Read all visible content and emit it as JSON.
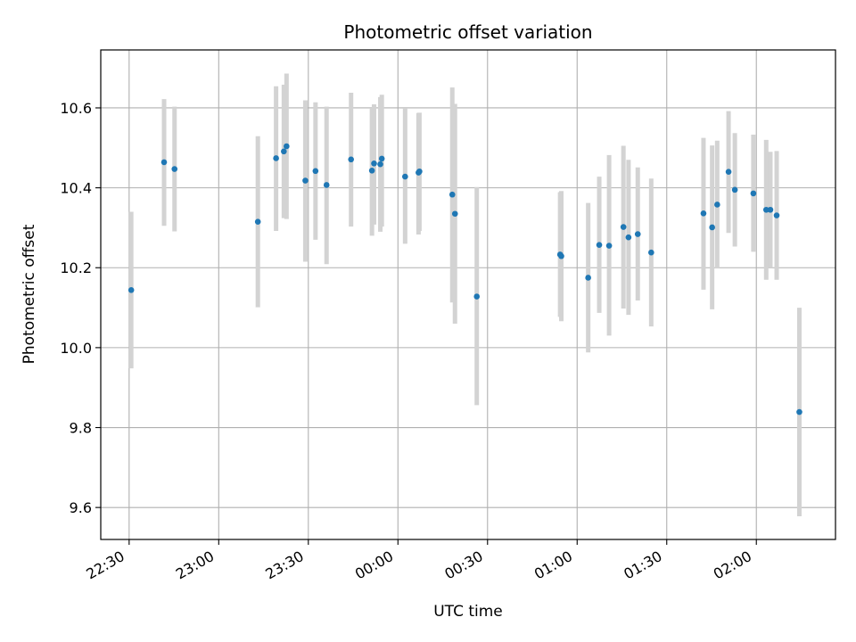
{
  "chart_data": {
    "type": "scatter",
    "title": "Photometric offset variation",
    "xlabel": "UTC time",
    "ylabel": "Photometric offset",
    "xlim": [
      "22:20:30",
      "02:26:30"
    ],
    "ylim": [
      9.52,
      10.745
    ],
    "x_is_time": true,
    "x_start_date_offset": 0,
    "xticks": [
      "22:30",
      "23:00",
      "23:30",
      "00:00",
      "00:30",
      "01:00",
      "01:30",
      "02:00"
    ],
    "yticks": [
      9.6,
      9.8,
      10.0,
      10.2,
      10.4,
      10.6
    ],
    "ytick_labels": [
      "9.6",
      "9.8",
      "10.0",
      "10.2",
      "10.4",
      "10.6"
    ],
    "grid": true,
    "colors": {
      "marker": "#1f77b4",
      "errorbar": "#d3d3d3",
      "grid": "#b0b0b0"
    },
    "points": [
      {
        "t": "22:30:42",
        "y": 10.144,
        "lo": 9.948,
        "hi": 10.34
      },
      {
        "t": "22:41:42",
        "y": 10.464,
        "lo": 10.305,
        "hi": 10.622
      },
      {
        "t": "22:45:12",
        "y": 10.447,
        "lo": 10.291,
        "hi": 10.603
      },
      {
        "t": "23:13:06",
        "y": 10.315,
        "lo": 10.101,
        "hi": 10.529
      },
      {
        "t": "23:19:12",
        "y": 10.474,
        "lo": 10.292,
        "hi": 10.654
      },
      {
        "t": "23:21:48",
        "y": 10.491,
        "lo": 10.324,
        "hi": 10.658
      },
      {
        "t": "23:22:42",
        "y": 10.504,
        "lo": 10.322,
        "hi": 10.686
      },
      {
        "t": "23:29:00",
        "y": 10.418,
        "lo": 10.215,
        "hi": 10.619
      },
      {
        "t": "23:32:24",
        "y": 10.442,
        "lo": 10.27,
        "hi": 10.614
      },
      {
        "t": "23:36:06",
        "y": 10.407,
        "lo": 10.209,
        "hi": 10.603
      },
      {
        "t": "23:44:18",
        "y": 10.471,
        "lo": 10.303,
        "hi": 10.638
      },
      {
        "t": "23:51:18",
        "y": 10.443,
        "lo": 10.28,
        "hi": 10.598
      },
      {
        "t": "23:52:00",
        "y": 10.461,
        "lo": 10.308,
        "hi": 10.609
      },
      {
        "t": "23:54:06",
        "y": 10.459,
        "lo": 10.29,
        "hi": 10.627
      },
      {
        "t": "23:54:36",
        "y": 10.473,
        "lo": 10.303,
        "hi": 10.633
      },
      {
        "t": "00:02:24",
        "y": 10.428,
        "lo": 10.26,
        "hi": 10.598
      },
      {
        "t": "00:06:54",
        "y": 10.438,
        "lo": 10.283,
        "hi": 10.587
      },
      {
        "t": "00:07:12",
        "y": 10.441,
        "lo": 10.292,
        "hi": 10.588
      },
      {
        "t": "00:18:12",
        "y": 10.383,
        "lo": 10.113,
        "hi": 10.651
      },
      {
        "t": "00:19:06",
        "y": 10.335,
        "lo": 10.06,
        "hi": 10.61
      },
      {
        "t": "00:26:24",
        "y": 10.128,
        "lo": 9.856,
        "hi": 10.402
      },
      {
        "t": "00:54:18",
        "y": 10.233,
        "lo": 10.077,
        "hi": 10.389
      },
      {
        "t": "00:54:42",
        "y": 10.229,
        "lo": 10.066,
        "hi": 10.392
      },
      {
        "t": "01:03:42",
        "y": 10.175,
        "lo": 9.988,
        "hi": 10.362
      },
      {
        "t": "01:07:24",
        "y": 10.257,
        "lo": 10.087,
        "hi": 10.428
      },
      {
        "t": "01:10:42",
        "y": 10.255,
        "lo": 10.03,
        "hi": 10.482
      },
      {
        "t": "01:15:30",
        "y": 10.302,
        "lo": 10.098,
        "hi": 10.505
      },
      {
        "t": "01:17:12",
        "y": 10.276,
        "lo": 10.082,
        "hi": 10.47
      },
      {
        "t": "01:20:18",
        "y": 10.284,
        "lo": 10.118,
        "hi": 10.451
      },
      {
        "t": "01:24:48",
        "y": 10.238,
        "lo": 10.053,
        "hi": 10.423
      },
      {
        "t": "01:42:18",
        "y": 10.336,
        "lo": 10.145,
        "hi": 10.525
      },
      {
        "t": "01:45:12",
        "y": 10.301,
        "lo": 10.096,
        "hi": 10.506
      },
      {
        "t": "01:46:54",
        "y": 10.358,
        "lo": 10.198,
        "hi": 10.518
      },
      {
        "t": "01:50:42",
        "y": 10.44,
        "lo": 10.287,
        "hi": 10.592
      },
      {
        "t": "01:52:48",
        "y": 10.395,
        "lo": 10.253,
        "hi": 10.537
      },
      {
        "t": "01:59:00",
        "y": 10.386,
        "lo": 10.24,
        "hi": 10.533
      },
      {
        "t": "02:03:18",
        "y": 10.345,
        "lo": 10.17,
        "hi": 10.52
      },
      {
        "t": "02:04:42",
        "y": 10.345,
        "lo": 10.2,
        "hi": 10.49
      },
      {
        "t": "02:06:48",
        "y": 10.331,
        "lo": 10.17,
        "hi": 10.492
      },
      {
        "t": "02:14:24",
        "y": 9.839,
        "lo": 9.578,
        "hi": 10.1
      }
    ]
  }
}
